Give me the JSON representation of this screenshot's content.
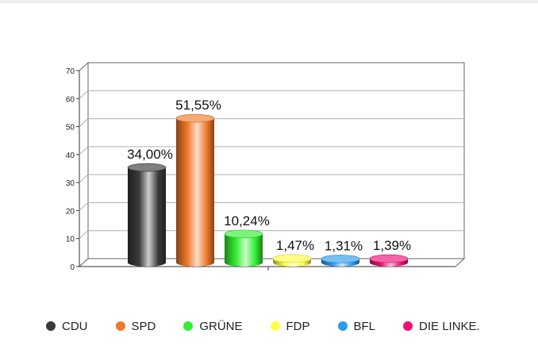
{
  "chart_data": {
    "type": "bar",
    "categories": [
      "CDU",
      "SPD",
      "GRÜNE",
      "FDP",
      "BFL",
      "DIE LINKE."
    ],
    "values": [
      34.0,
      51.55,
      10.24,
      1.47,
      1.31,
      1.39
    ],
    "data_labels": [
      "34,00%",
      "51,55%",
      "10,24%",
      "1,47%",
      "1,31%",
      "1,39%"
    ],
    "yticks": [
      "0",
      "10",
      "20",
      "30",
      "40",
      "50",
      "60",
      "70"
    ],
    "ylim": [
      0,
      70
    ],
    "grid": true,
    "legend_position": "bottom",
    "colors": [
      "#3a3a3a",
      "#f07a2a",
      "#33ee33",
      "#ffff44",
      "#2b9cf0",
      "#ee1177"
    ],
    "style": "3d-cylinder"
  }
}
